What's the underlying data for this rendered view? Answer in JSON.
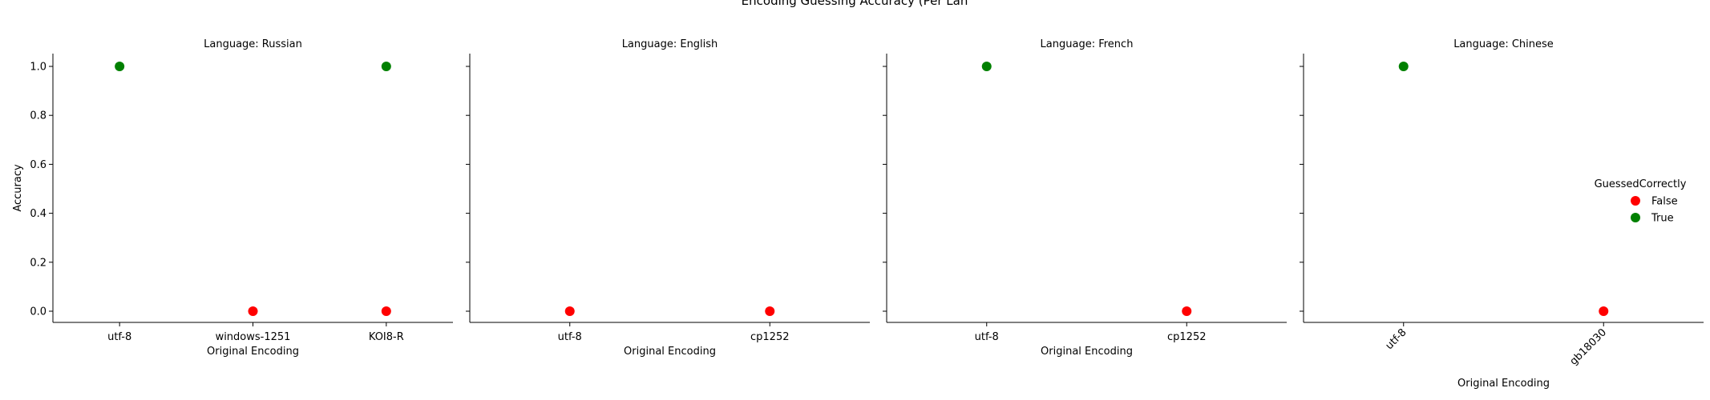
{
  "figure": {
    "suptitle": "Encoding Guessing Accuracy (Per Lan"
  },
  "legend": {
    "title": "GuessedCorrectly",
    "entries": [
      {
        "label": "False",
        "color": "#ff0000"
      },
      {
        "label": "True",
        "color": "#008000"
      }
    ]
  },
  "chart_data": [
    {
      "type": "scatter",
      "title": "Language: Russian",
      "xlabel": "Original Encoding",
      "ylabel": "Accuracy",
      "categories": [
        "utf-8",
        "windows-1251",
        "KOI8-R"
      ],
      "ylim": [
        -0.05,
        1.05
      ],
      "yticks": [
        "0.0",
        "0.2",
        "0.4",
        "0.6",
        "0.8",
        "1.0"
      ],
      "points": [
        {
          "category": "utf-8",
          "value": 1.0,
          "guessed_correctly": "True"
        },
        {
          "category": "windows-1251",
          "value": 0.0,
          "guessed_correctly": "False"
        },
        {
          "category": "KOI8-R",
          "value": 0.0,
          "guessed_correctly": "False"
        },
        {
          "category": "KOI8-R",
          "value": 1.0,
          "guessed_correctly": "True"
        }
      ],
      "grid": false
    },
    {
      "type": "scatter",
      "title": "Language: English",
      "xlabel": "Original Encoding",
      "ylabel": "",
      "categories": [
        "utf-8",
        "cp1252"
      ],
      "ylim": [
        -0.05,
        1.05
      ],
      "points": [
        {
          "category": "utf-8",
          "value": 0.0,
          "guessed_correctly": "False"
        },
        {
          "category": "cp1252",
          "value": 0.0,
          "guessed_correctly": "False"
        }
      ],
      "grid": false
    },
    {
      "type": "scatter",
      "title": "Language: French",
      "xlabel": "Original Encoding",
      "ylabel": "",
      "categories": [
        "utf-8",
        "cp1252"
      ],
      "ylim": [
        -0.05,
        1.05
      ],
      "points": [
        {
          "category": "utf-8",
          "value": 1.0,
          "guessed_correctly": "True"
        },
        {
          "category": "cp1252",
          "value": 0.0,
          "guessed_correctly": "False"
        }
      ],
      "grid": false
    },
    {
      "type": "scatter",
      "title": "Language: Chinese",
      "xlabel": "Original Encoding",
      "ylabel": "",
      "categories": [
        "utf-8",
        "gb18030"
      ],
      "rotated_xticks": true,
      "ylim": [
        -0.05,
        1.05
      ],
      "points": [
        {
          "category": "utf-8",
          "value": 1.0,
          "guessed_correctly": "True"
        },
        {
          "category": "gb18030",
          "value": 0.0,
          "guessed_correctly": "False"
        }
      ],
      "grid": false
    }
  ]
}
